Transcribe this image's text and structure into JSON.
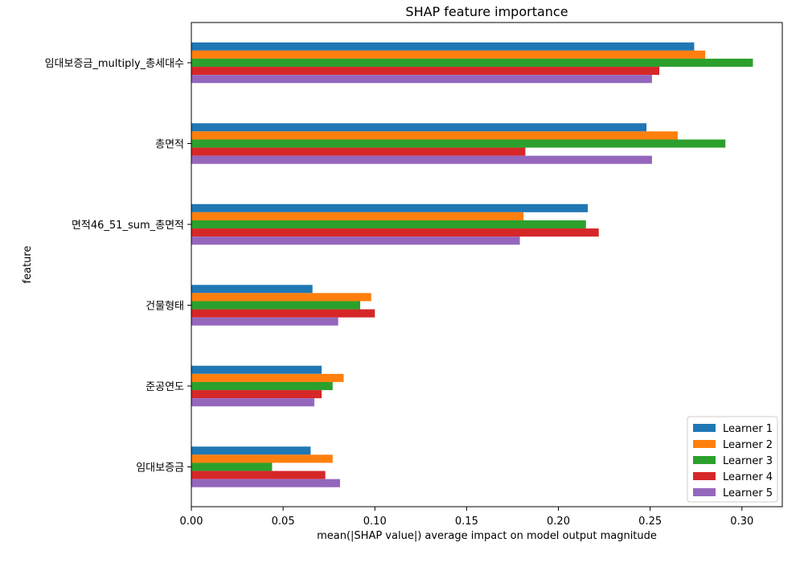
{
  "chart_data": {
    "type": "bar",
    "orientation": "horizontal",
    "title": "SHAP feature importance",
    "xlabel": "mean(|SHAP value|) average impact on model output magnitude",
    "ylabel": "feature",
    "xlim": [
      0,
      0.322
    ],
    "xticks": [
      "0.00",
      "0.05",
      "0.10",
      "0.15",
      "0.20",
      "0.25",
      "0.30"
    ],
    "xtick_values": [
      0,
      0.05,
      0.1,
      0.15,
      0.2,
      0.25,
      0.3
    ],
    "grid": false,
    "legend_position": "bottom-right",
    "categories": [
      "임대보증금_multiply_총세대수",
      "총면적",
      "면적46_51_sum_총면적",
      "건물형태",
      "준공연도",
      "임대보증금"
    ],
    "series": [
      {
        "name": "Learner 1",
        "color": "#1f77b4",
        "values": [
          0.274,
          0.248,
          0.216,
          0.066,
          0.071,
          0.065
        ]
      },
      {
        "name": "Learner 2",
        "color": "#ff7f0e",
        "values": [
          0.28,
          0.265,
          0.181,
          0.098,
          0.083,
          0.077
        ]
      },
      {
        "name": "Learner 3",
        "color": "#2ca02c",
        "values": [
          0.306,
          0.291,
          0.215,
          0.092,
          0.077,
          0.044
        ]
      },
      {
        "name": "Learner 4",
        "color": "#d62728",
        "values": [
          0.255,
          0.182,
          0.222,
          0.1,
          0.071,
          0.073
        ]
      },
      {
        "name": "Learner 5",
        "color": "#9467bd",
        "values": [
          0.251,
          0.251,
          0.179,
          0.08,
          0.067,
          0.081
        ]
      }
    ]
  }
}
